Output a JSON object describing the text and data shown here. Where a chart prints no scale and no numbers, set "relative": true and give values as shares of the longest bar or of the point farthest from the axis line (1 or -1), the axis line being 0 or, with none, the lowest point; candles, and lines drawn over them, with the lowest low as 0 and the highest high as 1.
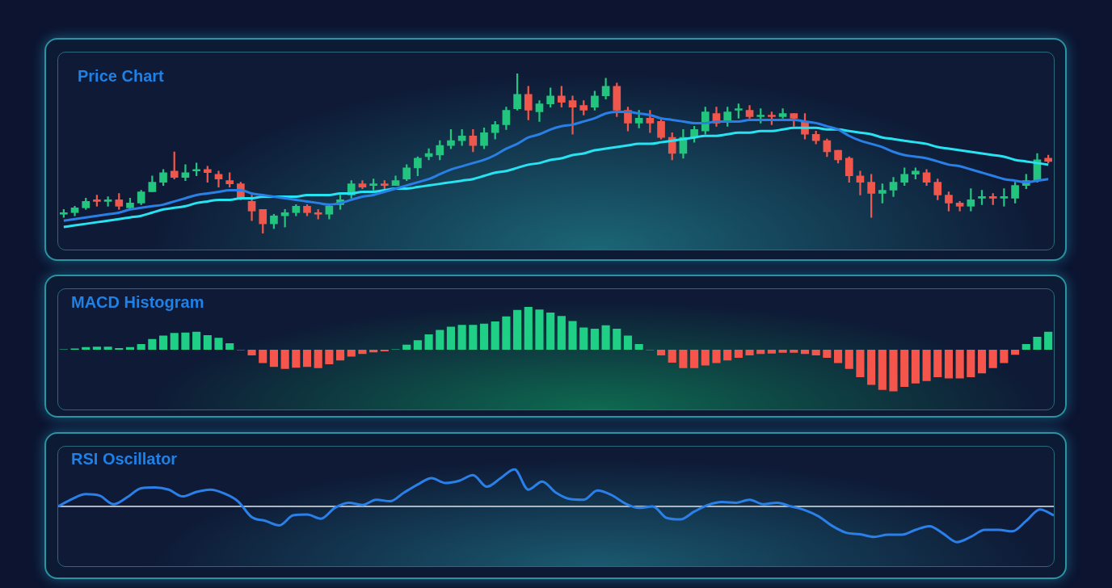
{
  "chart_data": [
    {
      "type": "candlestick",
      "title": "Price Chart",
      "relative": true,
      "categories": [
        null,
        null,
        null,
        null,
        null,
        null,
        null,
        null,
        null,
        null,
        null,
        null,
        null,
        null,
        null,
        null,
        null,
        null,
        null,
        null,
        null,
        null,
        null,
        null,
        null,
        null,
        null,
        null,
        null,
        null,
        null,
        null,
        null,
        null,
        null,
        null,
        null,
        null,
        null,
        null,
        null,
        null,
        null,
        null,
        null,
        null,
        null,
        null,
        null,
        null,
        null,
        null,
        null,
        null,
        null,
        null,
        null,
        null,
        null,
        null,
        null,
        null,
        null,
        null,
        null,
        null,
        null,
        null,
        null,
        null,
        null,
        null,
        null,
        null,
        null,
        null,
        null,
        null,
        null,
        null,
        null,
        null,
        null,
        null,
        null,
        null,
        null,
        null,
        null,
        null
      ],
      "ohlc": [
        [
          0.12,
          0.15,
          0.1,
          0.13
        ],
        [
          0.13,
          0.17,
          0.11,
          0.16
        ],
        [
          0.16,
          0.22,
          0.15,
          0.2
        ],
        [
          0.21,
          0.24,
          0.17,
          0.2
        ],
        [
          0.2,
          0.23,
          0.17,
          0.21
        ],
        [
          0.21,
          0.25,
          0.15,
          0.17
        ],
        [
          0.16,
          0.22,
          0.15,
          0.19
        ],
        [
          0.19,
          0.27,
          0.18,
          0.26
        ],
        [
          0.26,
          0.36,
          0.26,
          0.32
        ],
        [
          0.32,
          0.4,
          0.3,
          0.38
        ],
        [
          0.39,
          0.51,
          0.34,
          0.35
        ],
        [
          0.35,
          0.43,
          0.33,
          0.38
        ],
        [
          0.39,
          0.44,
          0.36,
          0.4
        ],
        [
          0.4,
          0.42,
          0.32,
          0.38
        ],
        [
          0.37,
          0.39,
          0.29,
          0.34
        ],
        [
          0.33,
          0.38,
          0.29,
          0.31
        ],
        [
          0.31,
          0.32,
          0.21,
          0.22
        ],
        [
          0.2,
          0.24,
          0.08,
          0.14
        ],
        [
          0.15,
          0.15,
          0.0,
          0.06
        ],
        [
          0.06,
          0.12,
          0.03,
          0.11
        ],
        [
          0.11,
          0.15,
          0.04,
          0.13
        ],
        [
          0.13,
          0.18,
          0.11,
          0.17
        ],
        [
          0.17,
          0.18,
          0.11,
          0.13
        ],
        [
          0.13,
          0.15,
          0.09,
          0.12
        ],
        [
          0.12,
          0.18,
          0.09,
          0.17
        ],
        [
          0.18,
          0.24,
          0.15,
          0.21
        ],
        [
          0.24,
          0.33,
          0.22,
          0.31
        ],
        [
          0.31,
          0.33,
          0.28,
          0.29
        ],
        [
          0.3,
          0.34,
          0.27,
          0.31
        ],
        [
          0.31,
          0.33,
          0.27,
          0.3
        ],
        [
          0.3,
          0.36,
          0.3,
          0.33
        ],
        [
          0.34,
          0.43,
          0.33,
          0.41
        ],
        [
          0.41,
          0.48,
          0.36,
          0.47
        ],
        [
          0.48,
          0.53,
          0.46,
          0.5
        ],
        [
          0.49,
          0.58,
          0.46,
          0.55
        ],
        [
          0.55,
          0.65,
          0.53,
          0.58
        ],
        [
          0.58,
          0.65,
          0.55,
          0.61
        ],
        [
          0.61,
          0.65,
          0.51,
          0.55
        ],
        [
          0.55,
          0.66,
          0.53,
          0.63
        ],
        [
          0.63,
          0.7,
          0.59,
          0.68
        ],
        [
          0.68,
          0.79,
          0.65,
          0.77
        ],
        [
          0.78,
          1.0,
          0.77,
          0.87
        ],
        [
          0.87,
          0.92,
          0.71,
          0.77
        ],
        [
          0.76,
          0.83,
          0.7,
          0.81
        ],
        [
          0.81,
          0.91,
          0.79,
          0.86
        ],
        [
          0.86,
          0.92,
          0.79,
          0.82
        ],
        [
          0.83,
          0.86,
          0.62,
          0.79
        ],
        [
          0.8,
          0.83,
          0.74,
          0.77
        ],
        [
          0.79,
          0.89,
          0.77,
          0.86
        ],
        [
          0.86,
          0.97,
          0.84,
          0.92
        ],
        [
          0.92,
          0.94,
          0.73,
          0.77
        ],
        [
          0.77,
          0.79,
          0.64,
          0.69
        ],
        [
          0.69,
          0.77,
          0.66,
          0.72
        ],
        [
          0.72,
          0.77,
          0.63,
          0.69
        ],
        [
          0.7,
          0.71,
          0.59,
          0.6
        ],
        [
          0.6,
          0.63,
          0.46,
          0.5
        ],
        [
          0.5,
          0.65,
          0.47,
          0.6
        ],
        [
          0.6,
          0.67,
          0.57,
          0.65
        ],
        [
          0.64,
          0.79,
          0.62,
          0.76
        ],
        [
          0.75,
          0.79,
          0.67,
          0.69
        ],
        [
          0.7,
          0.79,
          0.67,
          0.76
        ],
        [
          0.77,
          0.81,
          0.72,
          0.78
        ],
        [
          0.77,
          0.8,
          0.72,
          0.73
        ],
        [
          0.73,
          0.78,
          0.69,
          0.74
        ],
        [
          0.74,
          0.76,
          0.68,
          0.73
        ],
        [
          0.73,
          0.78,
          0.72,
          0.75
        ],
        [
          0.75,
          0.75,
          0.67,
          0.72
        ],
        [
          0.7,
          0.75,
          0.59,
          0.62
        ],
        [
          0.62,
          0.64,
          0.56,
          0.58
        ],
        [
          0.58,
          0.59,
          0.48,
          0.51
        ],
        [
          0.52,
          0.52,
          0.44,
          0.46
        ],
        [
          0.47,
          0.48,
          0.32,
          0.36
        ],
        [
          0.36,
          0.39,
          0.24,
          0.32
        ],
        [
          0.32,
          0.37,
          0.1,
          0.25
        ],
        [
          0.25,
          0.31,
          0.19,
          0.27
        ],
        [
          0.27,
          0.35,
          0.23,
          0.32
        ],
        [
          0.32,
          0.41,
          0.3,
          0.37
        ],
        [
          0.37,
          0.41,
          0.34,
          0.39
        ],
        [
          0.38,
          0.4,
          0.3,
          0.32
        ],
        [
          0.32,
          0.34,
          0.21,
          0.24
        ],
        [
          0.24,
          0.26,
          0.14,
          0.19
        ],
        [
          0.19,
          0.2,
          0.14,
          0.17
        ],
        [
          0.17,
          0.28,
          0.14,
          0.21
        ],
        [
          0.22,
          0.27,
          0.18,
          0.23
        ],
        [
          0.23,
          0.25,
          0.18,
          0.22
        ],
        [
          0.22,
          0.28,
          0.17,
          0.23
        ],
        [
          0.22,
          0.32,
          0.19,
          0.3
        ],
        [
          0.3,
          0.37,
          0.28,
          0.33
        ],
        [
          0.33,
          0.5,
          0.32,
          0.46
        ],
        [
          0.47,
          0.49,
          0.44,
          0.45
        ]
      ],
      "colors": [
        "#22c47e",
        "#22c47e",
        "#22c47e",
        "#f0574c",
        "#22c47e",
        "#f0574c",
        "#22c47e",
        "#22c47e",
        "#22c47e",
        "#22c47e",
        "#f0574c",
        "#22c47e",
        "#22c47e",
        "#f0574c",
        "#f0574c",
        "#f0574c",
        "#f0574c",
        "#f0574c",
        "#f0574c",
        "#22c47e",
        "#22c47e",
        "#22c47e",
        "#f0574c",
        "#f0574c",
        "#22c47e",
        "#22c47e",
        "#22c47e",
        "#f0574c",
        "#22c47e",
        "#f0574c",
        "#22c47e",
        "#22c47e",
        "#22c47e",
        "#22c47e",
        "#22c47e",
        "#22c47e",
        "#22c47e",
        "#f0574c",
        "#22c47e",
        "#22c47e",
        "#22c47e",
        "#22c47e",
        "#f0574c",
        "#22c47e",
        "#22c47e",
        "#f0574c",
        "#f0574c",
        "#f0574c",
        "#22c47e",
        "#22c47e",
        "#f0574c",
        "#f0574c",
        "#22c47e",
        "#f0574c",
        "#f0574c",
        "#f0574c",
        "#22c47e",
        "#22c47e",
        "#22c47e",
        "#f0574c",
        "#22c47e",
        "#22c47e",
        "#f0574c",
        "#22c47e",
        "#f0574c",
        "#22c47e",
        "#f0574c",
        "#f0574c",
        "#f0574c",
        "#f0574c",
        "#f0574c",
        "#f0574c",
        "#f0574c",
        "#f0574c",
        "#22c47e",
        "#22c47e",
        "#22c47e",
        "#22c47e",
        "#f0574c",
        "#f0574c",
        "#f0574c",
        "#f0574c",
        "#22c47e",
        "#22c47e",
        "#f0574c",
        "#22c47e",
        "#22c47e",
        "#22c47e",
        "#22c47e",
        "#f0574c"
      ],
      "series": [
        {
          "type": "line",
          "color": "#2a7fe6",
          "values": [
            0.08,
            0.09,
            0.1,
            0.11,
            0.12,
            0.13,
            0.15,
            0.16,
            0.17,
            0.18,
            0.2,
            0.22,
            0.24,
            0.25,
            0.26,
            0.27,
            0.27,
            0.25,
            0.24,
            0.23,
            0.22,
            0.21,
            0.2,
            0.19,
            0.18,
            0.19,
            0.21,
            0.23,
            0.24,
            0.26,
            0.28,
            0.3,
            0.32,
            0.34,
            0.37,
            0.4,
            0.42,
            0.44,
            0.46,
            0.49,
            0.53,
            0.56,
            0.6,
            0.62,
            0.65,
            0.67,
            0.68,
            0.7,
            0.72,
            0.75,
            0.76,
            0.76,
            0.75,
            0.74,
            0.72,
            0.71,
            0.7,
            0.69,
            0.69,
            0.7,
            0.7,
            0.7,
            0.71,
            0.71,
            0.71,
            0.71,
            0.71,
            0.7,
            0.69,
            0.67,
            0.65,
            0.61,
            0.58,
            0.56,
            0.54,
            0.51,
            0.49,
            0.48,
            0.47,
            0.45,
            0.43,
            0.42,
            0.4,
            0.38,
            0.36,
            0.34,
            0.33,
            0.32,
            0.33,
            0.34
          ]
        },
        {
          "type": "line",
          "color": "#27e3f2",
          "values": [
            0.04,
            0.05,
            0.06,
            0.07,
            0.08,
            0.09,
            0.1,
            0.11,
            0.13,
            0.15,
            0.16,
            0.17,
            0.19,
            0.2,
            0.21,
            0.21,
            0.22,
            0.22,
            0.23,
            0.23,
            0.23,
            0.23,
            0.24,
            0.24,
            0.24,
            0.25,
            0.25,
            0.26,
            0.26,
            0.27,
            0.28,
            0.28,
            0.29,
            0.3,
            0.31,
            0.32,
            0.33,
            0.34,
            0.36,
            0.38,
            0.39,
            0.41,
            0.43,
            0.44,
            0.46,
            0.47,
            0.49,
            0.5,
            0.52,
            0.53,
            0.54,
            0.55,
            0.56,
            0.56,
            0.57,
            0.58,
            0.59,
            0.6,
            0.61,
            0.61,
            0.62,
            0.63,
            0.63,
            0.64,
            0.64,
            0.65,
            0.66,
            0.66,
            0.66,
            0.65,
            0.65,
            0.64,
            0.63,
            0.62,
            0.6,
            0.59,
            0.58,
            0.57,
            0.56,
            0.54,
            0.53,
            0.52,
            0.51,
            0.5,
            0.49,
            0.48,
            0.46,
            0.45,
            0.44,
            0.43
          ]
        }
      ]
    },
    {
      "type": "bar",
      "title": "MACD Histogram",
      "relative": true,
      "categories": [
        null,
        null,
        null,
        null,
        null,
        null,
        null,
        null,
        null,
        null,
        null,
        null,
        null,
        null,
        null,
        null,
        null,
        null,
        null,
        null,
        null,
        null,
        null,
        null,
        null,
        null,
        null,
        null,
        null,
        null,
        null,
        null,
        null,
        null,
        null,
        null,
        null,
        null,
        null,
        null,
        null,
        null,
        null,
        null,
        null,
        null,
        null,
        null,
        null,
        null,
        null,
        null,
        null,
        null,
        null,
        null,
        null,
        null,
        null,
        null,
        null,
        null,
        null,
        null,
        null,
        null,
        null,
        null,
        null,
        null,
        null,
        null,
        null,
        null,
        null,
        null,
        null,
        null,
        null,
        null,
        null,
        null,
        null,
        null,
        null,
        null,
        null,
        null,
        null,
        null
      ],
      "values": [
        0.01,
        0.03,
        0.06,
        0.07,
        0.07,
        0.04,
        0.06,
        0.13,
        0.25,
        0.33,
        0.39,
        0.4,
        0.42,
        0.34,
        0.28,
        0.15,
        -0.01,
        -0.13,
        -0.31,
        -0.4,
        -0.45,
        -0.42,
        -0.4,
        -0.43,
        -0.34,
        -0.25,
        -0.16,
        -0.1,
        -0.06,
        -0.04,
        0.01,
        0.12,
        0.22,
        0.36,
        0.46,
        0.54,
        0.58,
        0.58,
        0.61,
        0.66,
        0.78,
        0.93,
        1.0,
        0.94,
        0.87,
        0.79,
        0.67,
        0.52,
        0.49,
        0.57,
        0.49,
        0.33,
        0.13,
        -0.01,
        -0.13,
        -0.3,
        -0.43,
        -0.43,
        -0.37,
        -0.31,
        -0.25,
        -0.19,
        -0.13,
        -0.1,
        -0.09,
        -0.07,
        -0.07,
        -0.1,
        -0.13,
        -0.19,
        -0.31,
        -0.45,
        -0.64,
        -0.82,
        -0.94,
        -0.97,
        -0.87,
        -0.79,
        -0.73,
        -0.64,
        -0.67,
        -0.67,
        -0.64,
        -0.55,
        -0.43,
        -0.31,
        -0.12,
        0.13,
        0.3,
        0.42
      ],
      "colors": [
        "#1fcf86",
        "#1fcf86",
        "#1fcf86",
        "#1fcf86",
        "#1fcf86",
        "#1fcf86",
        "#1fcf86",
        "#1fcf86",
        "#1fcf86",
        "#1fcf86",
        "#1fcf86",
        "#1fcf86",
        "#1fcf86",
        "#1fcf86",
        "#1fcf86",
        "#1fcf86",
        "#f5554a",
        "#f5554a",
        "#f5554a",
        "#f5554a",
        "#f5554a",
        "#f5554a",
        "#f5554a",
        "#f5554a",
        "#f5554a",
        "#f5554a",
        "#f5554a",
        "#f5554a",
        "#f5554a",
        "#f5554a",
        "#1fcf86",
        "#1fcf86",
        "#1fcf86",
        "#1fcf86",
        "#1fcf86",
        "#1fcf86",
        "#1fcf86",
        "#1fcf86",
        "#1fcf86",
        "#1fcf86",
        "#1fcf86",
        "#1fcf86",
        "#1fcf86",
        "#1fcf86",
        "#1fcf86",
        "#1fcf86",
        "#1fcf86",
        "#1fcf86",
        "#1fcf86",
        "#1fcf86",
        "#1fcf86",
        "#1fcf86",
        "#1fcf86",
        "#f5554a",
        "#f5554a",
        "#f5554a",
        "#f5554a",
        "#f5554a",
        "#f5554a",
        "#f5554a",
        "#f5554a",
        "#f5554a",
        "#f5554a",
        "#f5554a",
        "#f5554a",
        "#f5554a",
        "#f5554a",
        "#f5554a",
        "#f5554a",
        "#f5554a",
        "#f5554a",
        "#f5554a",
        "#f5554a",
        "#f5554a",
        "#f5554a",
        "#f5554a",
        "#f5554a",
        "#f5554a",
        "#f5554a",
        "#f5554a",
        "#f5554a",
        "#f5554a",
        "#f5554a",
        "#f5554a",
        "#f5554a",
        "#f5554a",
        "#f5554a",
        "#1fcf86",
        "#1fcf86",
        "#1fcf86"
      ]
    },
    {
      "type": "line",
      "title": "RSI Oscillator",
      "relative": true,
      "color": "#2a80e8",
      "categories": [
        null,
        null,
        null,
        null,
        null,
        null,
        null,
        null,
        null,
        null,
        null,
        null,
        null,
        null,
        null,
        null,
        null,
        null,
        null,
        null,
        null,
        null,
        null,
        null,
        null,
        null,
        null,
        null,
        null,
        null,
        null,
        null,
        null,
        null,
        null,
        null,
        null,
        null,
        null,
        null,
        null,
        null,
        null,
        null,
        null,
        null,
        null,
        null,
        null,
        null,
        null,
        null,
        null,
        null,
        null,
        null,
        null,
        null,
        null,
        null,
        null,
        null,
        null,
        null,
        null,
        null,
        null,
        null,
        null,
        null,
        null,
        null,
        null
      ],
      "values": [
        0,
        0.2,
        0.33,
        0.29,
        0.06,
        0.25,
        0.49,
        0.51,
        0.45,
        0.27,
        0.39,
        0.45,
        0.35,
        0.14,
        -0.29,
        -0.39,
        -0.51,
        -0.24,
        -0.22,
        -0.33,
        -0.04,
        0.1,
        0.04,
        0.18,
        0.14,
        0.37,
        0.59,
        0.76,
        0.63,
        0.69,
        0.84,
        0.53,
        0.76,
        1.0,
        0.45,
        0.67,
        0.37,
        0.2,
        0.18,
        0.43,
        0.31,
        0.08,
        -0.04,
        0,
        -0.31,
        -0.35,
        -0.14,
        0.04,
        0.12,
        0.1,
        0.18,
        0.06,
        0.1,
        0,
        -0.1,
        -0.27,
        -0.53,
        -0.71,
        -0.75,
        -0.82,
        -0.76,
        -0.76,
        -0.63,
        -0.53,
        -0.73,
        -0.96,
        -0.82,
        -0.63,
        -0.63,
        -0.67,
        -0.39,
        -0.08,
        -0.24
      ]
    }
  ]
}
